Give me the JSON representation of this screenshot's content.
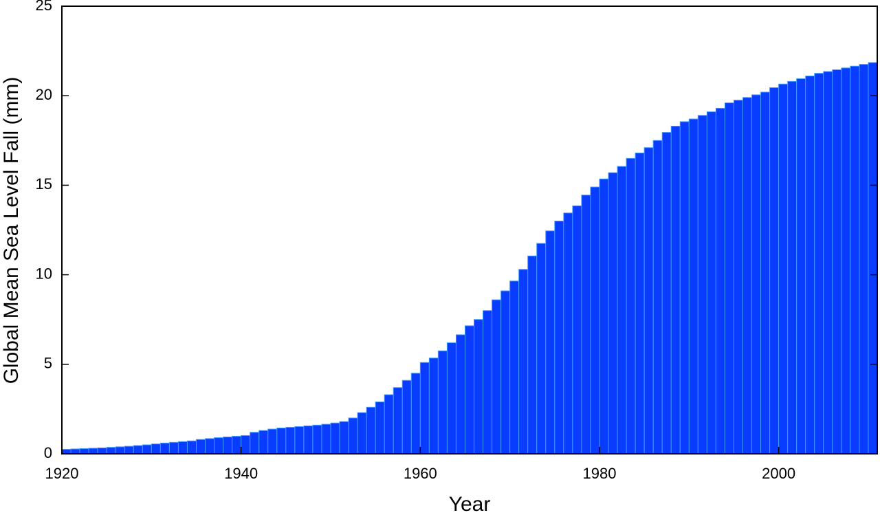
{
  "chart_data": {
    "type": "bar",
    "x_label": "Year",
    "y_label": "Global Mean Sea Level Fall (mm)",
    "x": [
      1920,
      1921,
      1922,
      1923,
      1924,
      1925,
      1926,
      1927,
      1928,
      1929,
      1930,
      1931,
      1932,
      1933,
      1934,
      1935,
      1936,
      1937,
      1938,
      1939,
      1940,
      1941,
      1942,
      1943,
      1944,
      1945,
      1946,
      1947,
      1948,
      1949,
      1950,
      1951,
      1952,
      1953,
      1954,
      1955,
      1956,
      1957,
      1958,
      1959,
      1960,
      1961,
      1962,
      1963,
      1964,
      1965,
      1966,
      1967,
      1968,
      1969,
      1970,
      1971,
      1972,
      1973,
      1974,
      1975,
      1976,
      1977,
      1978,
      1979,
      1980,
      1981,
      1982,
      1983,
      1984,
      1985,
      1986,
      1987,
      1988,
      1989,
      1990,
      1991,
      1992,
      1993,
      1994,
      1995,
      1996,
      1997,
      1998,
      1999,
      2000,
      2001,
      2002,
      2003,
      2004,
      2005,
      2006,
      2007,
      2008,
      2009,
      2010
    ],
    "values": [
      0.25,
      0.27,
      0.29,
      0.31,
      0.33,
      0.36,
      0.39,
      0.42,
      0.46,
      0.5,
      0.55,
      0.6,
      0.64,
      0.68,
      0.72,
      0.8,
      0.85,
      0.9,
      0.94,
      0.98,
      1.02,
      1.2,
      1.3,
      1.38,
      1.44,
      1.48,
      1.52,
      1.56,
      1.6,
      1.65,
      1.72,
      1.8,
      2.0,
      2.3,
      2.6,
      2.9,
      3.3,
      3.7,
      4.1,
      4.5,
      5.1,
      5.35,
      5.75,
      6.2,
      6.65,
      7.15,
      7.5,
      8.0,
      8.6,
      9.1,
      9.65,
      10.3,
      11.05,
      11.75,
      12.45,
      13.0,
      13.45,
      13.85,
      14.45,
      14.9,
      15.35,
      15.7,
      16.05,
      16.5,
      16.8,
      17.1,
      17.5,
      17.95,
      18.3,
      18.55,
      18.7,
      18.9,
      19.1,
      19.3,
      19.6,
      19.75,
      19.9,
      20.05,
      20.2,
      20.45,
      20.65,
      20.8,
      20.95,
      21.1,
      21.25,
      21.35,
      21.45,
      21.55,
      21.65,
      21.75,
      21.85
    ],
    "color": "#0a3cff",
    "xlim": [
      1920,
      2011
    ],
    "xticks": [
      1920,
      1940,
      1960,
      1980,
      2000
    ],
    "ylim": [
      0,
      25
    ],
    "yticks": [
      0,
      5,
      10,
      15,
      20,
      25
    ]
  }
}
